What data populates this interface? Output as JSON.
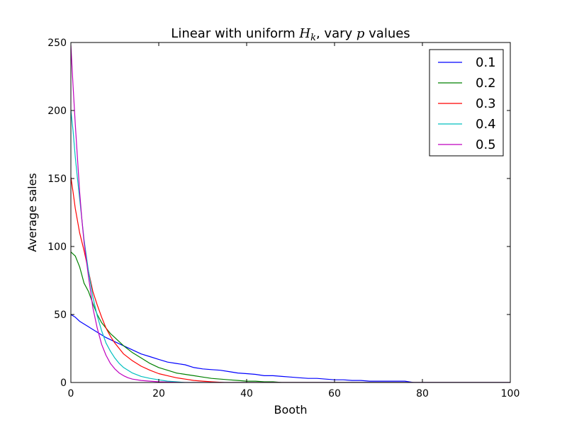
{
  "chart_data": {
    "type": "line",
    "title": "Linear with uniform H_k, vary p values",
    "title_parts": {
      "prefix": "Linear with uniform ",
      "var1": "H",
      "var1_sub": "k",
      "middle": ", vary ",
      "var2": "p",
      "suffix": " values"
    },
    "xlabel": "Booth",
    "ylabel": "Average sales",
    "xlim": [
      0,
      100
    ],
    "ylim": [
      0,
      250
    ],
    "xticks": [
      "0",
      "20",
      "40",
      "60",
      "80",
      "100"
    ],
    "yticks": [
      "0",
      "50",
      "100",
      "150",
      "200",
      "250"
    ],
    "legend_position": "top-right",
    "grid": false,
    "series": [
      {
        "name": "0.1",
        "color": "#0000ff",
        "x": [
          0,
          1,
          2,
          4,
          6,
          8,
          10,
          12,
          14,
          16,
          18,
          20,
          22,
          24,
          26,
          28,
          30,
          32,
          34,
          36,
          38,
          40,
          42,
          44,
          46,
          48,
          50,
          52,
          54,
          56,
          58,
          60,
          62,
          64,
          66,
          68,
          70,
          72,
          74,
          76,
          78,
          80,
          85,
          90,
          95,
          100
        ],
        "y": [
          50,
          48,
          45,
          41,
          37,
          33,
          30,
          27,
          24,
          21,
          19,
          17,
          15,
          14,
          13,
          11,
          10,
          9.5,
          9,
          8,
          7,
          6.5,
          6,
          5,
          5,
          4.5,
          4,
          3.5,
          3,
          3,
          2.5,
          2,
          2,
          1.5,
          1.5,
          1,
          1,
          1,
          1,
          1,
          0,
          0,
          0,
          0,
          0,
          0
        ]
      },
      {
        "name": "0.2",
        "color": "#008000",
        "x": [
          0,
          1,
          2,
          3,
          4,
          5,
          6,
          7,
          8,
          9,
          10,
          12,
          14,
          16,
          18,
          20,
          22,
          24,
          26,
          28,
          30,
          32,
          34,
          36,
          38,
          40,
          42,
          44,
          46,
          48,
          50,
          55,
          60,
          70,
          80,
          90,
          100
        ],
        "y": [
          96,
          93,
          85,
          73,
          67,
          58,
          50,
          44,
          40,
          36,
          33,
          27,
          22,
          18,
          14,
          11,
          9,
          7,
          6,
          5,
          4,
          3,
          2.5,
          2,
          1.5,
          1,
          1,
          0.5,
          0.5,
          0,
          0,
          0,
          0,
          0,
          0,
          0,
          0
        ]
      },
      {
        "name": "0.3",
        "color": "#ff0000",
        "x": [
          0,
          0.5,
          1,
          2,
          3,
          4,
          5,
          6,
          7,
          8,
          9,
          10,
          11,
          12,
          14,
          16,
          18,
          20,
          22,
          24,
          26,
          28,
          30,
          32,
          35,
          40,
          45,
          50,
          60,
          70,
          80,
          90,
          100
        ],
        "y": [
          151,
          140,
          128,
          110,
          97,
          82,
          67,
          57,
          48,
          40,
          34,
          29,
          25,
          21,
          16,
          12,
          9,
          6.5,
          5,
          3.5,
          2.5,
          1.5,
          1,
          0.5,
          0,
          0,
          0,
          0,
          0,
          0,
          0,
          0,
          0
        ]
      },
      {
        "name": "0.4",
        "color": "#00bfbf",
        "x": [
          0,
          0.5,
          1,
          1.5,
          2,
          3,
          4,
          5,
          6,
          7,
          8,
          9,
          10,
          11,
          12,
          14,
          16,
          18,
          20,
          22,
          24,
          26,
          28,
          30,
          40,
          50,
          60,
          70,
          80,
          90,
          100
        ],
        "y": [
          200,
          185,
          166,
          150,
          135,
          105,
          82,
          63,
          49,
          38,
          29,
          23,
          18,
          14,
          11,
          7,
          4.5,
          3,
          2,
          1,
          0.5,
          0,
          0,
          0,
          0,
          0,
          0,
          0,
          0,
          0,
          0
        ]
      },
      {
        "name": "0.5",
        "color": "#bf00bf",
        "x": [
          0,
          0.5,
          1,
          1.5,
          2,
          2.5,
          3,
          4,
          5,
          6,
          7,
          8,
          9,
          10,
          11,
          12,
          13,
          14,
          16,
          18,
          20,
          25,
          30,
          40,
          50,
          60,
          70,
          80,
          90,
          100
        ],
        "y": [
          248,
          218,
          190,
          165,
          140,
          120,
          103,
          78,
          55,
          40,
          28,
          20,
          14,
          10,
          7,
          5,
          3.5,
          2.5,
          1.5,
          1,
          0.5,
          0,
          0,
          0,
          0,
          0,
          0,
          0,
          0,
          0
        ]
      }
    ]
  }
}
